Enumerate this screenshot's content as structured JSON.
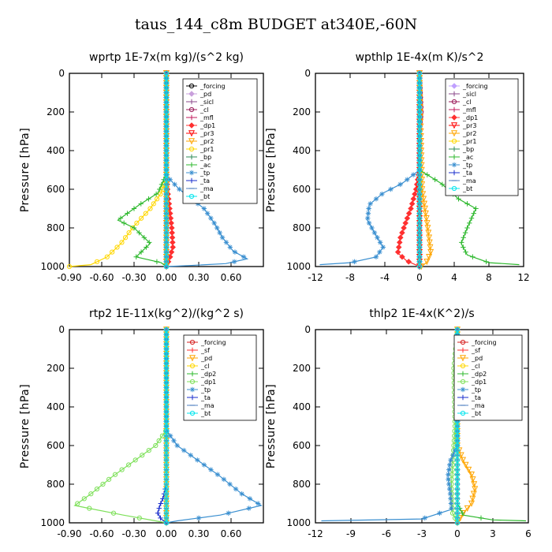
{
  "page": {
    "title": "taus_144_c8m  BUDGET at340E,-60N"
  },
  "chart_data": [
    {
      "type": "line",
      "title": "wprtp  1E-7x(m kg)/(s^2 kg)",
      "ylabel": "Pressure [hPa]",
      "xlim": [
        -0.9,
        0.9
      ],
      "ylim": [
        1000,
        0
      ],
      "xticks": [
        -0.9,
        -0.6,
        -0.3,
        0,
        0.3,
        0.6
      ],
      "xtick_labels": [
        "-0.90",
        "-0.60",
        "-0.30",
        "0.00",
        "0.30",
        "0.60"
      ],
      "yticks": [
        0,
        200,
        400,
        600,
        800,
        1000
      ],
      "ytick_labels": [
        "0",
        "200",
        "400",
        "600",
        "800",
        "1000"
      ],
      "legend_position": "top-right",
      "series": [
        {
          "name": "_forcing",
          "color": "#000000",
          "marker": "circle",
          "x": [
            0,
            0,
            0,
            0,
            0,
            0,
            0
          ],
          "y": [
            0,
            200,
            400,
            600,
            800,
            950,
            1000
          ]
        },
        {
          "name": "_pd",
          "color": "#c9a0dc",
          "marker": "diamond",
          "x": [
            0,
            0
          ],
          "y": [
            0,
            1000
          ]
        },
        {
          "name": "_sicl",
          "color": "#8b4a8b",
          "marker": "plus",
          "x": [
            0,
            0
          ],
          "y": [
            0,
            1000
          ]
        },
        {
          "name": "_cl",
          "color": "#9b1a5a",
          "marker": "circle",
          "x": [
            0,
            0
          ],
          "y": [
            0,
            1000
          ]
        },
        {
          "name": "_mfl",
          "color": "#c2185b",
          "marker": "plus",
          "x": [
            0,
            0
          ],
          "y": [
            0,
            1000
          ]
        },
        {
          "name": "_dp1",
          "color": "#ff3030",
          "marker": "diamond",
          "x": [
            0,
            0,
            0.01,
            0.03,
            0.05,
            0.06,
            0.03,
            0.0
          ],
          "y": [
            0,
            500,
            600,
            700,
            800,
            900,
            960,
            1000
          ]
        },
        {
          "name": "_pr3",
          "color": "#ff0000",
          "marker": "triangle",
          "x": [
            0,
            0
          ],
          "y": [
            0,
            1000
          ]
        },
        {
          "name": "_pr2",
          "color": "#ffa500",
          "marker": "triangle",
          "x": [
            0,
            0
          ],
          "y": [
            0,
            1000
          ]
        },
        {
          "name": "_pr1",
          "color": "#ffd700",
          "marker": "circle",
          "x": [
            0,
            0,
            -0.05,
            -0.15,
            -0.3,
            -0.42,
            -0.55,
            -0.7,
            -0.9
          ],
          "y": [
            0,
            550,
            620,
            700,
            790,
            880,
            950,
            990,
            1000
          ]
        },
        {
          "name": "_bp",
          "color": "#2e8b57",
          "marker": "plus",
          "x": [
            0,
            0
          ],
          "y": [
            0,
            1000
          ]
        },
        {
          "name": "_ac",
          "color": "#2db82d",
          "marker": "plus",
          "x": [
            0,
            0,
            -0.08,
            -0.25,
            -0.45,
            -0.3,
            -0.15,
            -0.28,
            -0.05,
            0.0
          ],
          "y": [
            0,
            520,
            620,
            680,
            760,
            800,
            880,
            950,
            980,
            1000
          ]
        },
        {
          "name": "_tp",
          "color": "#3a8fd0",
          "marker": "star",
          "x": [
            0,
            0,
            0.12,
            0.35,
            0.45,
            0.52,
            0.62,
            0.75,
            0.55,
            0.2,
            0.0
          ],
          "y": [
            0,
            530,
            600,
            700,
            780,
            850,
            920,
            960,
            985,
            995,
            1000
          ]
        },
        {
          "name": "_ta",
          "color": "#1a2ecc",
          "marker": "plus",
          "x": [
            0,
            0
          ],
          "y": [
            0,
            1000
          ]
        },
        {
          "name": "_ma",
          "color": "#5080c0",
          "marker": "dash",
          "x": [
            0,
            0
          ],
          "y": [
            0,
            1000
          ]
        },
        {
          "name": "_bt",
          "color": "#00e5ee",
          "marker": "circle",
          "x": [
            0,
            0
          ],
          "y": [
            0,
            1000
          ]
        }
      ]
    },
    {
      "type": "line",
      "title": "wpthlp  1E-4x(m K)/s^2",
      "ylabel": "Pressure [hPa]",
      "xlim": [
        -12,
        12
      ],
      "ylim": [
        1000,
        0
      ],
      "xticks": [
        -12,
        -8,
        -4,
        0,
        4,
        8,
        12
      ],
      "xtick_labels": [
        "-12",
        "-8",
        "-4",
        "0",
        "4",
        "8",
        "12"
      ],
      "yticks": [
        0,
        200,
        400,
        600,
        800,
        1000
      ],
      "ytick_labels": [
        "0",
        "200",
        "400",
        "600",
        "800",
        "1000"
      ],
      "legend_position": "top-right",
      "series": [
        {
          "name": "_forcing",
          "color": "#c0a0ff",
          "marker": "diamond",
          "x": [
            0,
            0
          ],
          "y": [
            0,
            1000
          ]
        },
        {
          "name": "_sicl",
          "color": "#8b4a8b",
          "marker": "plus",
          "x": [
            0,
            0
          ],
          "y": [
            0,
            1000
          ]
        },
        {
          "name": "_cl",
          "color": "#9b1a5a",
          "marker": "circle",
          "x": [
            0,
            0.2,
            0,
            0
          ],
          "y": [
            0,
            200,
            300,
            1000
          ]
        },
        {
          "name": "_mfl",
          "color": "#c2185b",
          "marker": "plus",
          "x": [
            0,
            0
          ],
          "y": [
            0,
            1000
          ]
        },
        {
          "name": "_dp1",
          "color": "#ff3030",
          "marker": "diamond",
          "x": [
            0,
            0,
            -0.4,
            -1.0,
            -1.5,
            -2.2,
            -2.5,
            -1.5,
            -0.5,
            0
          ],
          "y": [
            0,
            500,
            600,
            700,
            760,
            850,
            930,
            970,
            990,
            1000
          ]
        },
        {
          "name": "_pr3",
          "color": "#ff0000",
          "marker": "triangle",
          "x": [
            0,
            0
          ],
          "y": [
            0,
            1000
          ]
        },
        {
          "name": "_pr2",
          "color": "#ffa500",
          "marker": "triangle",
          "x": [
            0,
            0.3,
            0.8,
            1.1,
            1.3,
            0.8,
            0.2
          ],
          "y": [
            0,
            600,
            750,
            850,
            930,
            980,
            1000
          ]
        },
        {
          "name": "_pr1",
          "color": "#ffd700",
          "marker": "circle",
          "x": [
            0,
            0
          ],
          "y": [
            0,
            1000
          ]
        },
        {
          "name": "_bp",
          "color": "#2e8b57",
          "marker": "plus",
          "x": [
            0,
            0
          ],
          "y": [
            0,
            1000
          ]
        },
        {
          "name": "_ac",
          "color": "#2db82d",
          "marker": "plus",
          "x": [
            0,
            0,
            2.5,
            4.5,
            6.5,
            5.5,
            4.8,
            5.5,
            8.0,
            11.5
          ],
          "y": [
            0,
            500,
            570,
            650,
            700,
            800,
            880,
            940,
            980,
            990
          ]
        },
        {
          "name": "_tp",
          "color": "#3a8fd0",
          "marker": "star",
          "x": [
            0,
            0,
            -2.0,
            -4.2,
            -5.8,
            -6.0,
            -5.0,
            -4.2,
            -5.0,
            -8.0,
            -11.5
          ],
          "y": [
            0,
            500,
            570,
            620,
            680,
            760,
            840,
            900,
            950,
            980,
            990
          ]
        },
        {
          "name": "_ta",
          "color": "#1a2ecc",
          "marker": "plus",
          "x": [
            0,
            0
          ],
          "y": [
            0,
            1000
          ]
        },
        {
          "name": "_ma",
          "color": "#5080c0",
          "marker": "dash",
          "x": [
            0,
            0
          ],
          "y": [
            0,
            1000
          ]
        },
        {
          "name": "_bt",
          "color": "#00e5ee",
          "marker": "circle",
          "x": [
            0,
            0
          ],
          "y": [
            0,
            1000
          ]
        }
      ]
    },
    {
      "type": "line",
      "title": "rtp2  1E-11x(kg^2)/(kg^2 s)",
      "ylabel": "Pressure [hPa]",
      "xlim": [
        -0.9,
        0.9
      ],
      "ylim": [
        1000,
        0
      ],
      "xticks": [
        -0.9,
        -0.6,
        -0.3,
        0,
        0.3,
        0.6
      ],
      "xtick_labels": [
        "-0.90",
        "-0.60",
        "-0.30",
        "0.00",
        "0.30",
        "0.60"
      ],
      "yticks": [
        0,
        200,
        400,
        600,
        800,
        1000
      ],
      "ytick_labels": [
        "0",
        "200",
        "400",
        "600",
        "800",
        "1000"
      ],
      "legend_position": "top-right",
      "series": [
        {
          "name": "_forcing",
          "color": "#d62020",
          "marker": "circle",
          "x": [
            0,
            0
          ],
          "y": [
            0,
            1000
          ]
        },
        {
          "name": "_sf",
          "color": "#ff3030",
          "marker": "plus",
          "x": [
            0,
            0
          ],
          "y": [
            0,
            1000
          ]
        },
        {
          "name": "_pd",
          "color": "#ffa500",
          "marker": "triangle",
          "x": [
            0,
            0
          ],
          "y": [
            0,
            1000
          ]
        },
        {
          "name": "_cl",
          "color": "#ffd700",
          "marker": "circle",
          "x": [
            0,
            0
          ],
          "y": [
            0,
            1000
          ]
        },
        {
          "name": "_dp2",
          "color": "#2db82d",
          "marker": "plus",
          "x": [
            0,
            0
          ],
          "y": [
            0,
            1000
          ]
        },
        {
          "name": "_dp1",
          "color": "#7ee05a",
          "marker": "circle",
          "x": [
            0,
            0,
            -0.1,
            -0.3,
            -0.5,
            -0.7,
            -0.85,
            -0.4,
            -0.1,
            0
          ],
          "y": [
            0,
            520,
            600,
            680,
            760,
            850,
            910,
            960,
            990,
            1000
          ]
        },
        {
          "name": "_tp",
          "color": "#3a8fd0",
          "marker": "star",
          "x": [
            0,
            0,
            0.1,
            0.3,
            0.5,
            0.7,
            0.88,
            0.5,
            0.1,
            0
          ],
          "y": [
            0,
            520,
            600,
            680,
            760,
            850,
            910,
            960,
            990,
            1000
          ]
        },
        {
          "name": "_ta",
          "color": "#1a2ecc",
          "marker": "plus",
          "x": [
            0,
            0,
            -0.03,
            -0.06,
            -0.08,
            -0.05,
            0
          ],
          "y": [
            0,
            800,
            870,
            910,
            950,
            980,
            1000
          ]
        },
        {
          "name": "_ma",
          "color": "#5080c0",
          "marker": "dash",
          "x": [
            0,
            0
          ],
          "y": [
            0,
            1000
          ]
        },
        {
          "name": "_bt",
          "color": "#00e5ee",
          "marker": "circle",
          "x": [
            0,
            0
          ],
          "y": [
            0,
            1000
          ]
        }
      ]
    },
    {
      "type": "line",
      "title": "thlp2  1E-4x(K^2)/s",
      "ylabel": "Pressure [hPa]",
      "xlim": [
        -12,
        6
      ],
      "ylim": [
        1000,
        0
      ],
      "xticks": [
        -12,
        -9,
        -6,
        -3,
        0,
        3,
        6
      ],
      "xtick_labels": [
        "-12",
        "-9",
        "-6",
        "-3",
        "0",
        "3",
        "6"
      ],
      "yticks": [
        0,
        200,
        400,
        600,
        800,
        1000
      ],
      "ytick_labels": [
        "0",
        "200",
        "400",
        "600",
        "800",
        "1000"
      ],
      "legend_position": "top-right",
      "series": [
        {
          "name": "_forcing",
          "color": "#d62020",
          "marker": "circle",
          "x": [
            0,
            0
          ],
          "y": [
            0,
            1000
          ]
        },
        {
          "name": "_sf",
          "color": "#ff3030",
          "marker": "plus",
          "x": [
            0,
            0
          ],
          "y": [
            0,
            1000
          ]
        },
        {
          "name": "_pd",
          "color": "#ffa500",
          "marker": "triangle",
          "x": [
            0,
            0,
            0.5,
            1.2,
            1.5,
            1.2,
            0.5,
            0
          ],
          "y": [
            0,
            600,
            680,
            750,
            820,
            900,
            950,
            1000
          ]
        },
        {
          "name": "_cl",
          "color": "#ffd700",
          "marker": "circle",
          "x": [
            0,
            0
          ],
          "y": [
            0,
            1000
          ]
        },
        {
          "name": "_dp2",
          "color": "#2db82d",
          "marker": "plus",
          "x": [
            0,
            0,
            0.5,
            3.0,
            5.8
          ],
          "y": [
            0,
            900,
            960,
            985,
            990
          ]
        },
        {
          "name": "_dp1",
          "color": "#7ee05a",
          "marker": "circle",
          "x": [
            0,
            -0.3,
            -0.2,
            -0.5,
            -0.4,
            0
          ],
          "y": [
            0,
            200,
            500,
            800,
            950,
            1000
          ]
        },
        {
          "name": "_tp",
          "color": "#3a8fd0",
          "marker": "star",
          "x": [
            0,
            0,
            -0.6,
            -0.8,
            -0.6,
            -0.5,
            -3.0,
            -11.5
          ],
          "y": [
            0,
            600,
            680,
            760,
            850,
            930,
            980,
            990
          ]
        },
        {
          "name": "_ta",
          "color": "#1a2ecc",
          "marker": "plus",
          "x": [
            0,
            0
          ],
          "y": [
            0,
            1000
          ]
        },
        {
          "name": "_ma",
          "color": "#5080c0",
          "marker": "dash",
          "x": [
            0,
            0
          ],
          "y": [
            0,
            1000
          ]
        },
        {
          "name": "_bt",
          "color": "#00e5ee",
          "marker": "circle",
          "x": [
            0,
            0
          ],
          "y": [
            0,
            1000
          ]
        }
      ]
    }
  ]
}
